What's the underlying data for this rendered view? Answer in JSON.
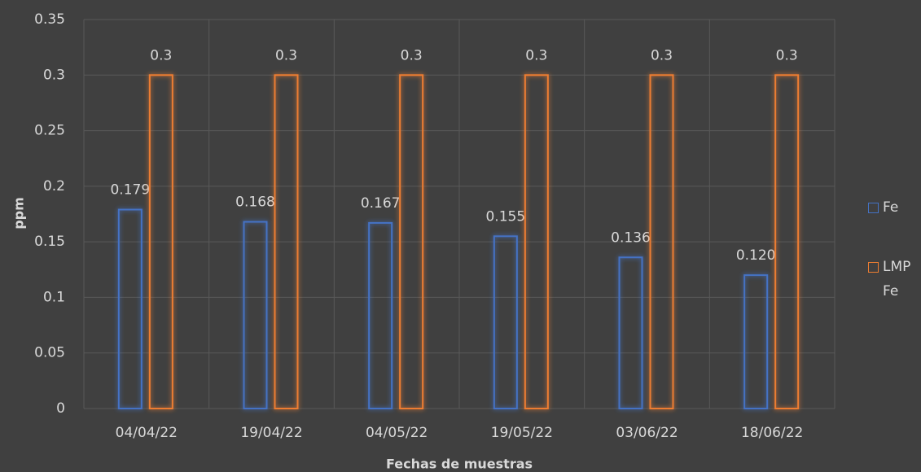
{
  "chart_data": {
    "type": "bar",
    "categories": [
      "04/04/22",
      "19/04/22",
      "04/05/22",
      "19/05/22",
      "03/06/22",
      "18/06/22"
    ],
    "series": [
      {
        "name": "Fe",
        "color": "#4472c4",
        "values": [
          0.179,
          0.168,
          0.167,
          0.155,
          0.136,
          0.12
        ],
        "value_labels": [
          "0.179",
          "0.168",
          "0.167",
          "0.155",
          "0.136",
          "0.120"
        ]
      },
      {
        "name": "LMP Fe",
        "color": "#ed7d31",
        "values": [
          0.3,
          0.3,
          0.3,
          0.3,
          0.3,
          0.3
        ]
      }
    ],
    "ylim": [
      0,
      0.35
    ],
    "yticks": [
      0,
      0.05,
      0.1,
      0.15,
      0.2,
      0.25,
      0.3,
      0.35
    ],
    "ylabel": "ppm",
    "xlabel": "Fechas de muestras",
    "grid": true,
    "legend": "right"
  }
}
